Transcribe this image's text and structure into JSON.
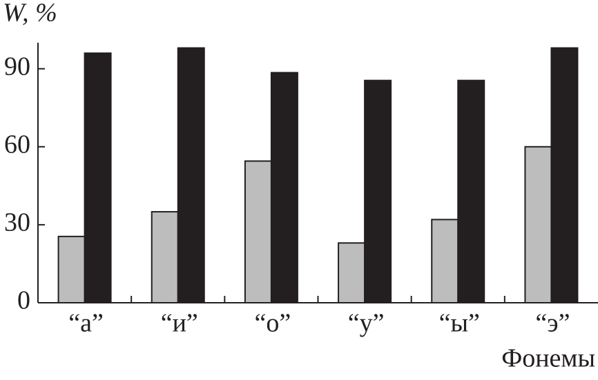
{
  "chart_data": {
    "type": "bar",
    "ylabel": "W, %",
    "xlabel": "Фонемы",
    "categories": [
      "“а”",
      "“и”",
      "“о”",
      "“у”",
      "“ы”",
      "“э”"
    ],
    "series": [
      {
        "color": "#bdbdbd",
        "values": [
          25.5,
          35,
          54.5,
          23,
          32,
          60
        ]
      },
      {
        "color": "#231f20",
        "values": [
          96,
          98,
          88.5,
          85.5,
          85.5,
          98
        ]
      }
    ],
    "ylim": [
      0,
      100
    ],
    "yticks": [
      0,
      30,
      60,
      90
    ]
  }
}
